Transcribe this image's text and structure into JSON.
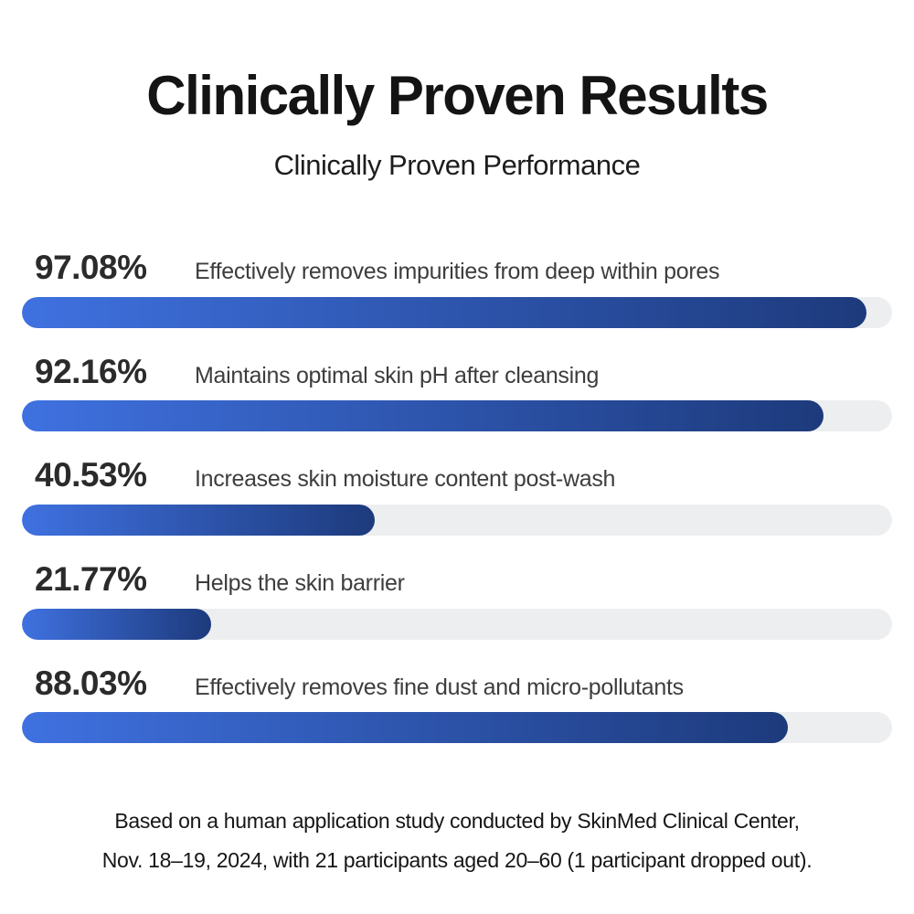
{
  "header": {
    "title": "Clinically Proven Results",
    "subtitle": "Clinically Proven Performance"
  },
  "chart_data": {
    "type": "bar",
    "orientation": "horizontal",
    "unit": "%",
    "xlim": [
      0,
      100
    ],
    "grid": false,
    "title": "Clinically Proven Results",
    "subtitle": "Clinically Proven Performance",
    "items": [
      {
        "value": "97.08%",
        "pct": 97.08,
        "label": "Effectively removes impurities from deep within pores"
      },
      {
        "value": "92.16%",
        "pct": 92.16,
        "label": "Maintains optimal skin pH after cleansing"
      },
      {
        "value": "40.53%",
        "pct": 40.53,
        "label": "Increases skin moisture content post-wash"
      },
      {
        "value": "21.77%",
        "pct": 21.77,
        "label": "Helps the skin barrier"
      },
      {
        "value": "88.03%",
        "pct": 88.03,
        "label": "Effectively removes fine dust and micro-pollutants"
      }
    ],
    "bar_colors": {
      "fill_start": "#3f71e0",
      "fill_end": "#1d3a7c",
      "track": "#eceef0"
    }
  },
  "footer": {
    "line1": "Based on a human application study conducted by SkinMed Clinical Center,",
    "line2": "Nov. 18–19, 2024, with 21 participants aged 20–60 (1 participant dropped out)."
  }
}
